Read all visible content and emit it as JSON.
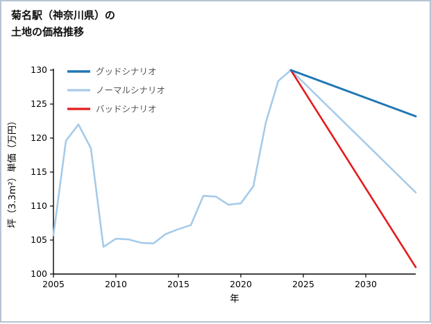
{
  "title": {
    "line1": "菊名駅（神奈川県）の",
    "line2": "土地の価格推移"
  },
  "chart_data": {
    "type": "line",
    "title": "菊名駅（神奈川県）の土地の価格推移",
    "xlabel": "年",
    "ylabel": "坪（3.3m²）単価（万円）",
    "xlim": [
      2005,
      2034
    ],
    "ylim": [
      100,
      130
    ],
    "xticks": [
      2005,
      2010,
      2015,
      2020,
      2025,
      2030
    ],
    "yticks": [
      100,
      105,
      110,
      115,
      120,
      125,
      130
    ],
    "grid": false,
    "legend_position": "upper-left",
    "legend_text_color": "#555555",
    "axis_color": "#000000",
    "series": [
      {
        "name": "グッドシナリオ",
        "color": "#1f77b4",
        "line_width": 3,
        "x": [
          2024,
          2034
        ],
        "y": [
          130,
          123.2
        ]
      },
      {
        "name": "ノーマルシナリオ",
        "color": "#a6cbe9",
        "line_width": 2.6,
        "x": [
          2005,
          2006,
          2007,
          2008,
          2009,
          2010,
          2011,
          2012,
          2013,
          2014,
          2015,
          2016,
          2017,
          2018,
          2019,
          2020,
          2021,
          2022,
          2023,
          2024,
          2034
        ],
        "y": [
          105.7,
          119.6,
          122.0,
          118.5,
          104.0,
          105.2,
          105.1,
          104.6,
          104.5,
          105.9,
          106.6,
          107.2,
          111.5,
          111.4,
          110.2,
          110.4,
          112.9,
          122.3,
          128.4,
          130.0,
          112.0
        ]
      },
      {
        "name": "バッドシナリオ",
        "color": "#e41a1c",
        "line_width": 2.6,
        "x": [
          2024,
          2034
        ],
        "y": [
          130,
          101.0
        ]
      }
    ]
  },
  "colors": {
    "page_border": "#b6c4d1",
    "background": "#ffffff"
  }
}
